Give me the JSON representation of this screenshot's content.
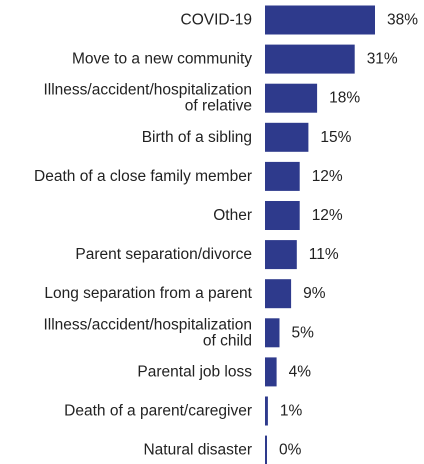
{
  "chart_data": {
    "type": "bar",
    "orientation": "horizontal",
    "title": "",
    "xlabel": "",
    "ylabel": "",
    "xlim": [
      0,
      38
    ],
    "bar_color": "#2e3a8c",
    "value_suffix": "%",
    "categories": [
      [
        "COVID-19"
      ],
      [
        "Move to a new community"
      ],
      [
        "Illness/accident/hospitalization",
        "of relative"
      ],
      [
        "Birth of a sibling"
      ],
      [
        "Death of a close family member"
      ],
      [
        "Other"
      ],
      [
        "Parent separation/divorce"
      ],
      [
        "Long separation from a parent"
      ],
      [
        "Illness/accident/hospitalization",
        "of child"
      ],
      [
        "Parental job loss"
      ],
      [
        "Death of a parent/caregiver"
      ],
      [
        "Natural disaster"
      ]
    ],
    "values": [
      38,
      31,
      18,
      15,
      12,
      12,
      11,
      9,
      5,
      4,
      1,
      0
    ]
  }
}
